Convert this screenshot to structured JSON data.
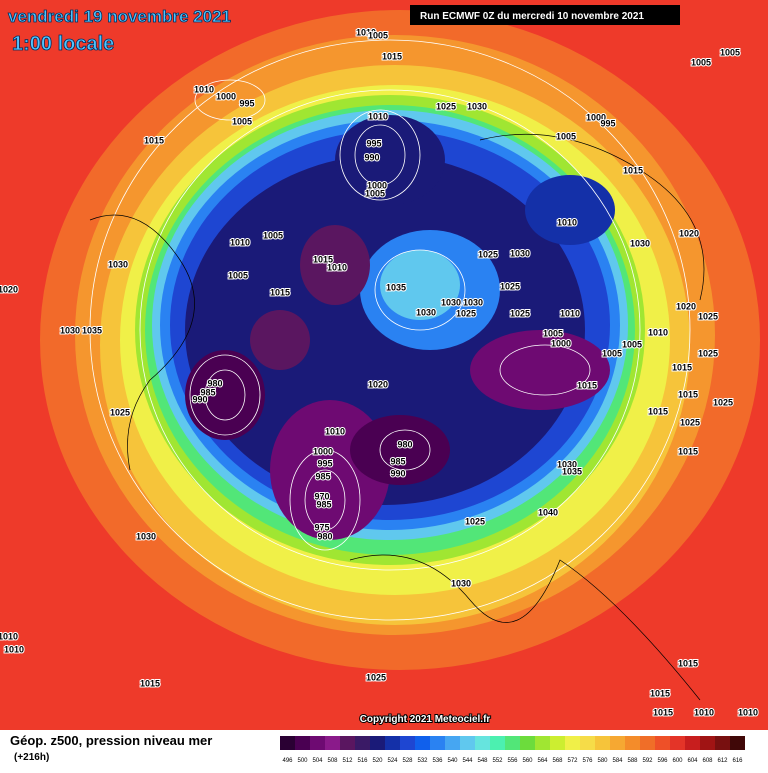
{
  "header": {
    "title": "vendredi 19 novembre 2021",
    "subtitle": "1:00 locale",
    "run": "Run ECMWF 0Z du mercredi 10 novembre 2021"
  },
  "copyright": "Copyright 2021 Meteociel.fr",
  "legend": {
    "title": "Géop. z500, pression niveau mer",
    "lead": "(+216h)",
    "levels": [
      496,
      500,
      504,
      508,
      512,
      516,
      520,
      524,
      528,
      532,
      536,
      540,
      544,
      548,
      552,
      556,
      560,
      564,
      568,
      572,
      576,
      580,
      584,
      588,
      592,
      596,
      600,
      604,
      608,
      612,
      616
    ],
    "colors": [
      "#2a0033",
      "#4a0052",
      "#6e0a72",
      "#8a1a8a",
      "#5a1660",
      "#3a1a66",
      "#1a1a78",
      "#1430a8",
      "#1e46d2",
      "#1060ec",
      "#2a82f2",
      "#46a6f2",
      "#60c8ee",
      "#66e4de",
      "#4cf0b0",
      "#52e678",
      "#6cdc3c",
      "#a0e632",
      "#ccee30",
      "#f0f048",
      "#f6dc48",
      "#f6c43a",
      "#f6a832",
      "#f48c2a",
      "#f06e28",
      "#ee5028",
      "#e43428",
      "#c81e1e",
      "#a01414",
      "#781010",
      "#400808"
    ]
  },
  "isobar_labels": [
    1010,
    1005,
    1015,
    1005,
    1005,
    1010,
    1000,
    995,
    1005,
    1025,
    1030,
    1010,
    1000,
    995,
    1005,
    1015,
    995,
    990,
    1000,
    1005,
    1015,
    1010,
    1020,
    1030,
    1010,
    1005,
    1015,
    1010,
    1025,
    1030,
    1030,
    1005,
    1020,
    1035,
    1015,
    1025,
    1030,
    1030,
    1030,
    1025,
    1020,
    1025,
    1025,
    1010,
    1005,
    1000,
    1010,
    1005,
    1005,
    1035,
    1030,
    1025,
    1015,
    1020,
    1015,
    980,
    985,
    990,
    1015,
    1025,
    1015,
    1025,
    1025,
    1010,
    1000,
    980,
    985,
    990,
    995,
    985,
    1015,
    1030,
    1035,
    970,
    985,
    1040,
    1025,
    975,
    980,
    1030,
    1030,
    1010,
    1010,
    1015,
    1015,
    1025,
    1015,
    1010,
    1015,
    1010
  ]
}
